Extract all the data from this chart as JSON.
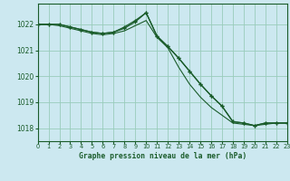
{
  "title": "Graphe pression niveau de la mer (hPa)",
  "bg_color": "#cce8f0",
  "grid_color": "#99ccbb",
  "line_color": "#1a5c2a",
  "xlim": [
    0,
    23
  ],
  "ylim": [
    1017.5,
    1022.8
  ],
  "yticks": [
    1018,
    1019,
    1020,
    1021,
    1022
  ],
  "xticks": [
    0,
    1,
    2,
    3,
    4,
    5,
    6,
    7,
    8,
    9,
    10,
    11,
    12,
    13,
    14,
    15,
    16,
    17,
    18,
    19,
    20,
    21,
    22,
    23
  ],
  "series1": [
    1022.0,
    1022.0,
    1022.0,
    1021.9,
    1021.8,
    1021.7,
    1021.65,
    1021.7,
    1021.85,
    1022.1,
    1022.45,
    1021.55,
    1021.15,
    1020.7,
    1020.2,
    1019.7,
    1019.25,
    1018.85,
    1018.25,
    1018.2,
    1018.1,
    1018.2,
    1018.2,
    1018.2
  ],
  "series2": [
    1022.0,
    1022.0,
    1021.95,
    1021.85,
    1021.75,
    1021.65,
    1021.6,
    1021.65,
    1021.75,
    1021.95,
    1022.15,
    1021.5,
    1021.1,
    1020.35,
    1019.7,
    1019.2,
    1018.8,
    1018.5,
    1018.2,
    1018.15,
    1018.1,
    1018.15,
    1018.2,
    1018.2
  ],
  "series3": [
    1022.0,
    1022.0,
    1022.0,
    1021.9,
    1021.8,
    1021.7,
    1021.65,
    1021.7,
    1021.9,
    1022.15,
    1022.45,
    1021.55,
    1021.15,
    1020.7,
    1020.2,
    1019.7,
    1019.25,
    1018.85,
    1018.25,
    1018.2,
    1018.1,
    1018.2,
    1018.2,
    1018.2
  ]
}
